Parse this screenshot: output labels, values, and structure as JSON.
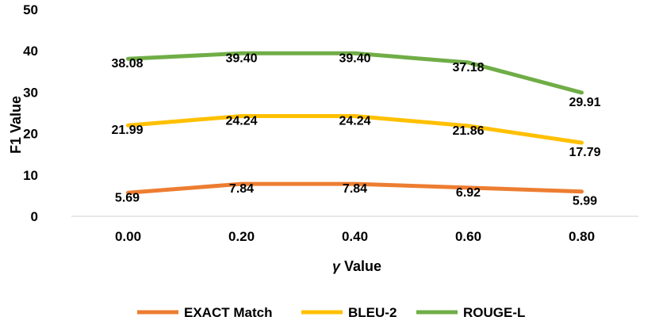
{
  "chart_data": {
    "type": "line",
    "title": "",
    "xlabel_symbol": "γ",
    "xlabel": "Value",
    "ylabel": "F1 Value",
    "categories": [
      "0.00",
      "0.20",
      "0.40",
      "0.60",
      "0.80"
    ],
    "ylim": [
      0,
      50
    ],
    "yticks": [
      0,
      10,
      20,
      30,
      40,
      50
    ],
    "grid": false,
    "legend_position": "bottom",
    "series": [
      {
        "name": "EXACT Match",
        "color": "#ED7D31",
        "values": [
          5.69,
          7.84,
          7.84,
          6.92,
          5.99
        ],
        "labels": [
          "5.69",
          "7.84",
          "7.84",
          "6.92",
          "5.99"
        ]
      },
      {
        "name": "BLEU-2",
        "color": "#FFC000",
        "values": [
          21.99,
          24.24,
          24.24,
          21.86,
          17.79
        ],
        "labels": [
          "21.99",
          "24.24",
          "24.24",
          "21.86",
          "17.79"
        ]
      },
      {
        "name": "ROUGE-L",
        "color": "#70AD47",
        "values": [
          38.08,
          39.4,
          39.4,
          37.18,
          29.91
        ],
        "labels": [
          "38.08",
          "39.40",
          "39.40",
          "37.18",
          "29.91"
        ]
      }
    ]
  }
}
